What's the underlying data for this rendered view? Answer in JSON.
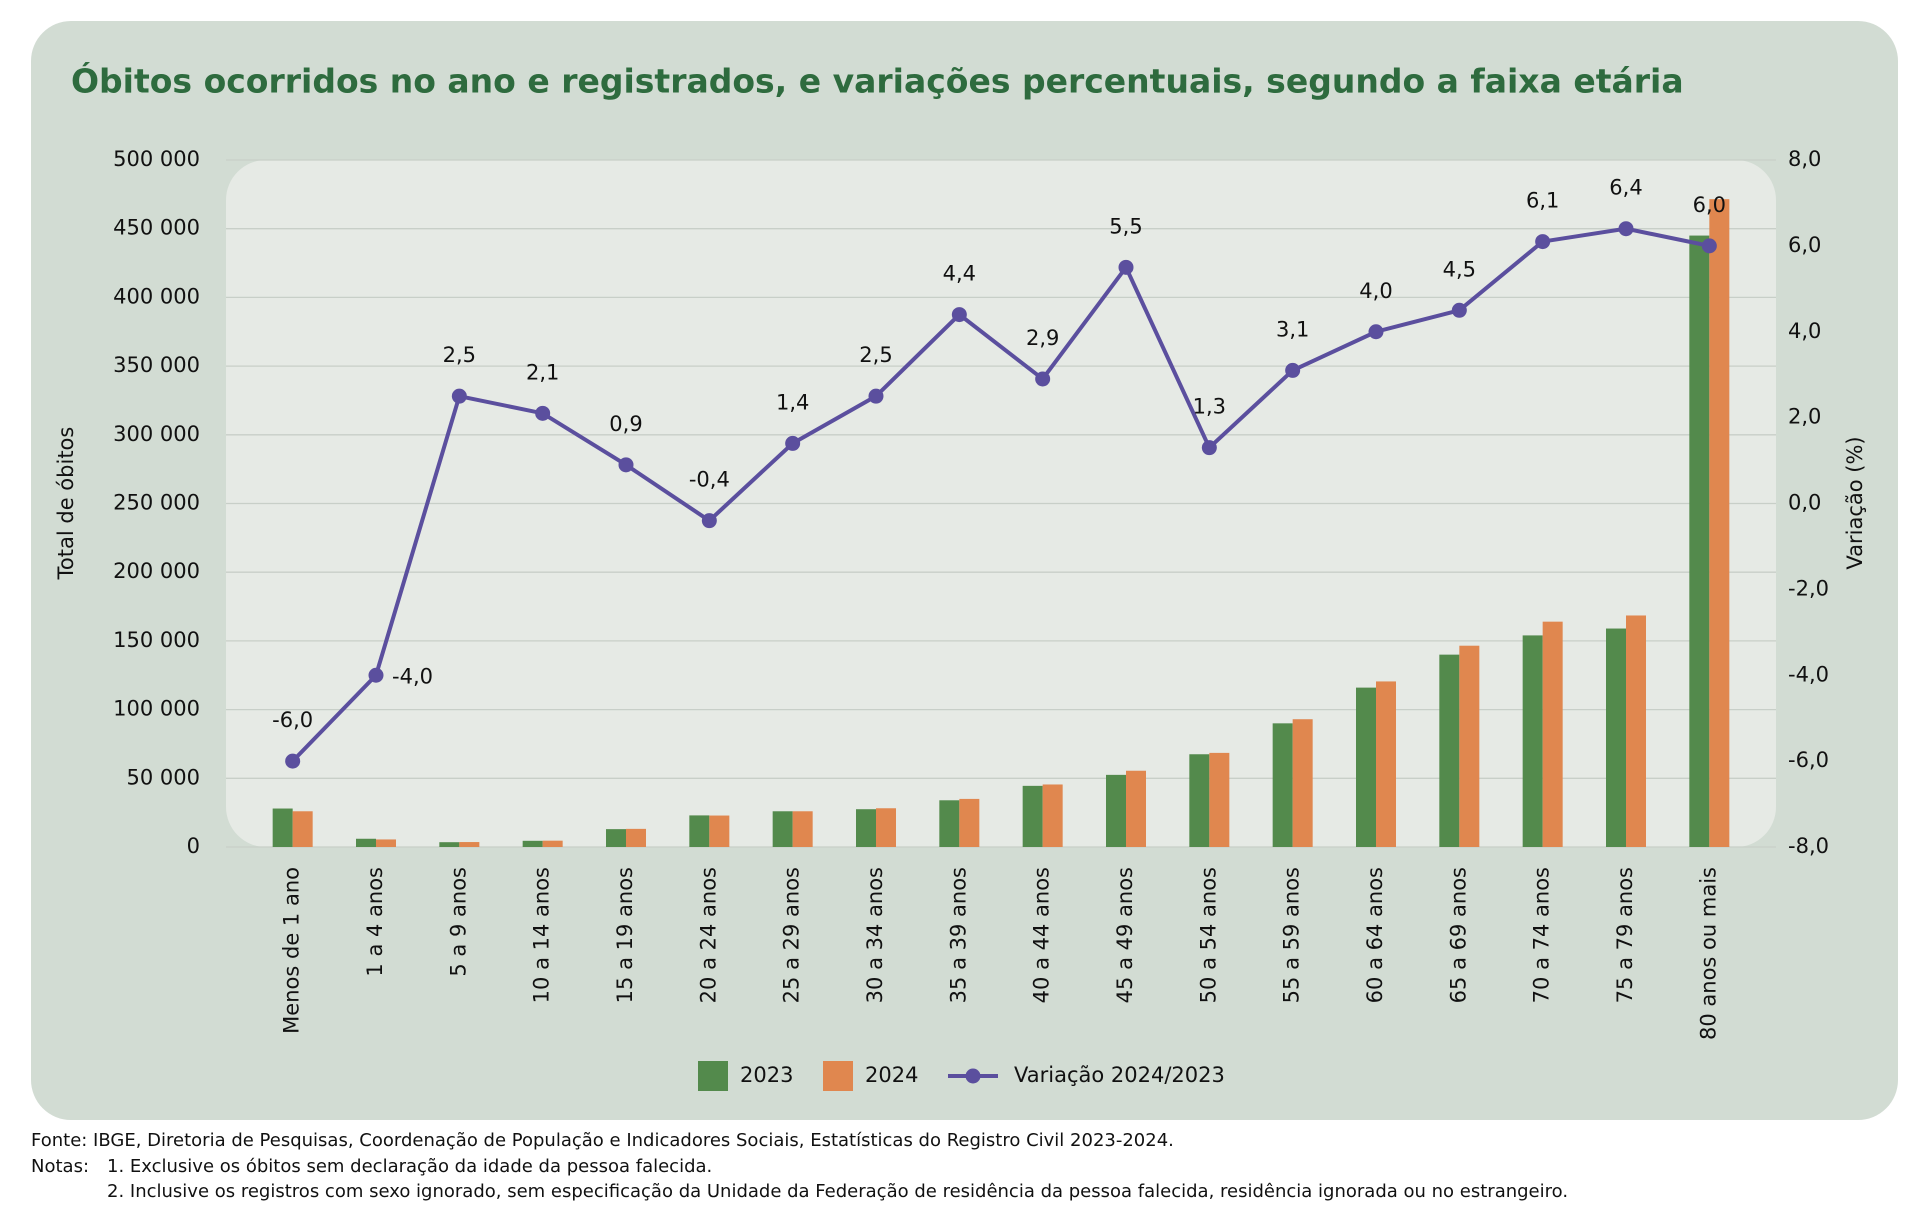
{
  "chart_data": {
    "type": "bar-line",
    "title": "Óbitos ocorridos no ano e registrados, e variações percentuais, segundo a faixa etária",
    "y_label": "Total de óbitos",
    "y2_label": "Variação (%)",
    "categories": [
      "Menos de 1 ano",
      "1 a 4 anos",
      "5 a 9 anos",
      "10 a 14 anos",
      "15 a 19 anos",
      "20 a 24 anos",
      "25 a 29 anos",
      "30 a 34 anos",
      "35 a 39 anos",
      "40 a 44 anos",
      "45 a 49 anos",
      "50 a 54 anos",
      "55 a 59 anos",
      "60 a 64 anos",
      "65 a 69 anos",
      "70 a 74 anos",
      "75 a 79 anos",
      "80 anos ou mais"
    ],
    "series": [
      {
        "name": "2023",
        "type": "bar",
        "color": "#538a4c",
        "values": [
          28000,
          6000,
          3500,
          4500,
          13000,
          23000,
          26000,
          27500,
          34000,
          44500,
          52500,
          67500,
          90000,
          116000,
          140000,
          154000,
          159000,
          445000
        ]
      },
      {
        "name": "2024",
        "type": "bar",
        "color": "#e0874f",
        "values": [
          26000,
          5500,
          3600,
          4600,
          13200,
          22900,
          26000,
          28200,
          35000,
          45500,
          55500,
          68500,
          93000,
          120500,
          146500,
          164000,
          168500,
          471500
        ]
      },
      {
        "name": "Variação 2024/2023",
        "type": "line",
        "axis": "y2",
        "color": "#5b4f9e",
        "values": [
          -6.0,
          -4.0,
          2.5,
          2.1,
          0.9,
          -0.4,
          1.4,
          2.5,
          4.4,
          2.9,
          5.5,
          1.3,
          3.1,
          4.0,
          4.5,
          6.1,
          6.4,
          6.0
        ],
        "value_labels": [
          "-6,0",
          "-4,0",
          "2,5",
          "2,1",
          "0,9",
          "-0,4",
          "1,4",
          "2,5",
          "4,4",
          "2,9",
          "5,5",
          "1,3",
          "3,1",
          "4,0",
          "4,5",
          "6,1",
          "6,4",
          "6,0"
        ]
      }
    ],
    "ylim": [
      0,
      500000
    ],
    "yticks": [
      0,
      {
        "value": 50000,
        "label": "50 000"
      },
      {
        "value": 100000,
        "label": "100 000"
      },
      {
        "value": 150000,
        "label": "150 000"
      },
      {
        "value": 200000,
        "label": "200 000"
      },
      {
        "value": 250000,
        "label": "250 000"
      },
      {
        "value": 300000,
        "label": "300 000"
      },
      {
        "value": 350000,
        "label": "350 000"
      },
      {
        "value": 400000,
        "label": "400 000"
      },
      {
        "value": 450000,
        "label": "450 000"
      },
      {
        "value": 500000,
        "label": "500 000"
      }
    ],
    "y2lim": [
      -8,
      8
    ],
    "y2ticks": [
      {
        "value": -8,
        "label": "-8,0"
      },
      {
        "value": -6,
        "label": "-6,0"
      },
      {
        "value": -4,
        "label": "-4,0"
      },
      {
        "value": -2,
        "label": "-2,0"
      },
      {
        "value": 0,
        "label": "0,0"
      },
      {
        "value": 2,
        "label": "2,0"
      },
      {
        "value": 4,
        "label": "4,0"
      },
      {
        "value": 6,
        "label": "6,0"
      },
      {
        "value": 8,
        "label": "8,0"
      }
    ],
    "grid": true,
    "legend": "bottom",
    "source": "Fonte: IBGE, Diretoria de Pesquisas, Coordenação de População e Indicadores Sociais, Estatísticas do Registro Civil 2023-2024.",
    "notes_label": "Notas:",
    "notes": [
      "1. Exclusive os óbitos sem declaração da idade da pessoa falecida.",
      "2. Inclusive os registros com sexo ignorado, sem especificação da Unidade da Federação de residência da pessoa falecida, residência ignorada ou no estrangeiro."
    ]
  }
}
